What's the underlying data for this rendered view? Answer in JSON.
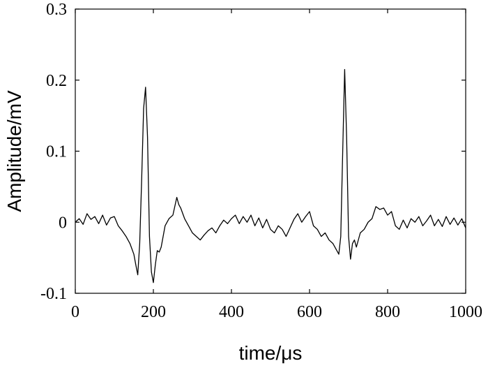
{
  "chart_data": {
    "type": "line",
    "title": "",
    "xlabel": "time/μs",
    "ylabel": "Amplitude/mV",
    "xlim": [
      0,
      1000
    ],
    "ylim": [
      -0.1,
      0.3
    ],
    "xticks": [
      0,
      200,
      400,
      600,
      800,
      1000
    ],
    "xtick_labels": [
      "0",
      "200",
      "400",
      "600",
      "800",
      "1000"
    ],
    "yticks": [
      -0.1,
      0,
      0.1,
      0.2,
      0.3
    ],
    "ytick_labels": [
      "-0.1",
      "0",
      "0.1",
      "0.2",
      "0.3"
    ],
    "grid": false,
    "legend": "none",
    "line_color": "#000000",
    "series": [
      {
        "x": [
          0,
          10,
          20,
          30,
          40,
          50,
          60,
          70,
          80,
          90,
          100,
          110,
          120,
          130,
          140,
          150,
          155,
          160,
          165,
          170,
          175,
          180,
          185,
          190,
          195,
          200,
          205,
          210,
          215,
          220,
          230,
          240,
          250,
          260,
          265,
          270,
          280,
          290,
          300,
          310,
          320,
          330,
          340,
          350,
          360,
          370,
          380,
          390,
          400,
          410,
          420,
          430,
          440,
          450,
          460,
          470,
          480,
          490,
          500,
          510,
          520,
          530,
          540,
          550,
          560,
          570,
          580,
          590,
          600,
          610,
          620,
          630,
          640,
          650,
          660,
          670,
          675,
          680,
          685,
          690,
          695,
          700,
          705,
          710,
          715,
          720,
          730,
          740,
          750,
          760,
          770,
          780,
          790,
          800,
          810,
          820,
          830,
          840,
          850,
          860,
          870,
          880,
          890,
          900,
          910,
          920,
          930,
          940,
          950,
          960,
          970,
          980,
          990,
          1000
        ],
        "y": [
          0.0,
          0.005,
          -0.003,
          0.012,
          0.004,
          0.008,
          -0.002,
          0.01,
          -0.004,
          0.006,
          0.008,
          -0.005,
          -0.012,
          -0.02,
          -0.03,
          -0.045,
          -0.06,
          -0.074,
          -0.03,
          0.06,
          0.16,
          0.19,
          0.12,
          -0.02,
          -0.07,
          -0.085,
          -0.06,
          -0.04,
          -0.042,
          -0.035,
          -0.005,
          0.005,
          0.01,
          0.035,
          0.025,
          0.02,
          0.005,
          -0.005,
          -0.015,
          -0.02,
          -0.025,
          -0.018,
          -0.012,
          -0.008,
          -0.015,
          -0.005,
          0.003,
          -0.002,
          0.005,
          0.01,
          -0.002,
          0.008,
          0.0,
          0.01,
          -0.005,
          0.006,
          -0.008,
          0.004,
          -0.01,
          -0.015,
          -0.005,
          -0.01,
          -0.02,
          -0.008,
          0.004,
          0.012,
          0.0,
          0.008,
          0.015,
          -0.005,
          -0.01,
          -0.02,
          -0.015,
          -0.025,
          -0.03,
          -0.04,
          -0.045,
          -0.02,
          0.1,
          0.215,
          0.12,
          -0.02,
          -0.052,
          -0.03,
          -0.025,
          -0.035,
          -0.015,
          -0.01,
          0.0,
          0.005,
          0.022,
          0.018,
          0.02,
          0.01,
          0.015,
          -0.005,
          -0.01,
          0.003,
          -0.008,
          0.005,
          0.0,
          0.008,
          -0.005,
          0.002,
          0.01,
          -0.005,
          0.004,
          -0.006,
          0.008,
          -0.003,
          0.006,
          -0.004,
          0.005,
          -0.008
        ]
      }
    ]
  }
}
